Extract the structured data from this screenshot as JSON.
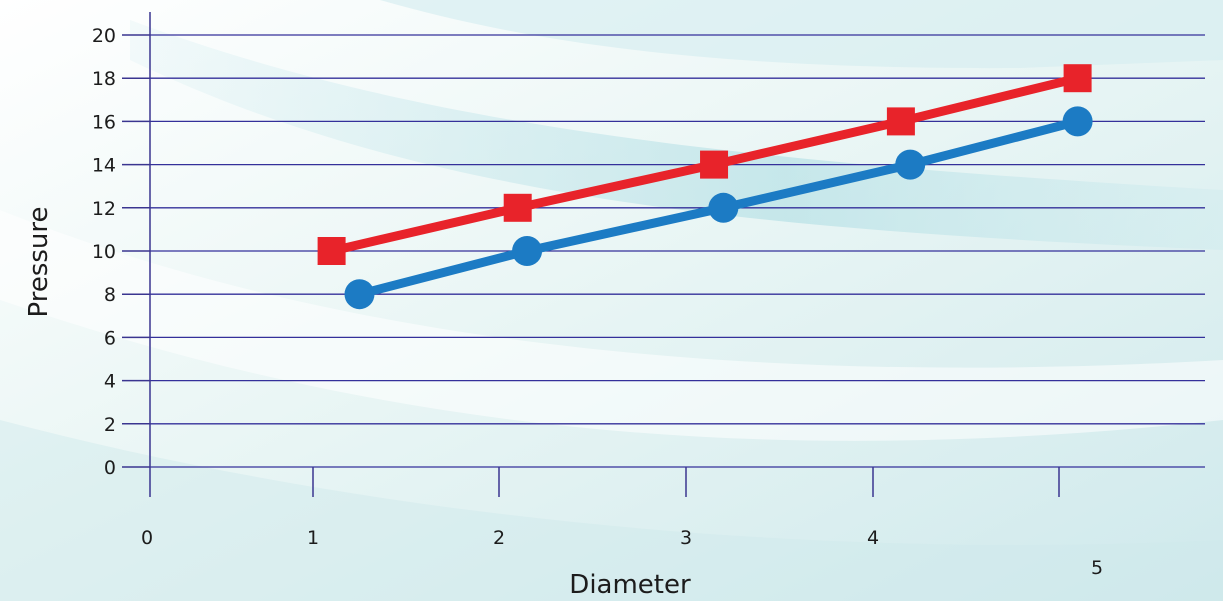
{
  "chart_data": {
    "type": "line",
    "title": "",
    "xlabel": "Diameter",
    "ylabel": "Pressure",
    "x_ticks": [
      0,
      1,
      2,
      3,
      4,
      5
    ],
    "y_ticks": [
      0,
      2,
      4,
      6,
      8,
      10,
      12,
      14,
      16,
      18,
      20
    ],
    "xlim": [
      0,
      5.8
    ],
    "ylim": [
      0,
      20
    ],
    "grid": "horizontal",
    "legend": "none",
    "series": [
      {
        "marker": "square",
        "color": "#e8232a",
        "x": [
          1.1,
          2.1,
          3.15,
          4.15,
          5.1
        ],
        "y": [
          10,
          12,
          14,
          16,
          18
        ]
      },
      {
        "marker": "circle",
        "color": "#1c7bc4",
        "x": [
          1.25,
          2.15,
          3.2,
          4.2,
          5.1
        ],
        "y": [
          8,
          10,
          12,
          14,
          16
        ]
      }
    ],
    "colors": {
      "grid": "#34309a",
      "axis": "#3a3590",
      "text": "#1c1c1c"
    }
  }
}
